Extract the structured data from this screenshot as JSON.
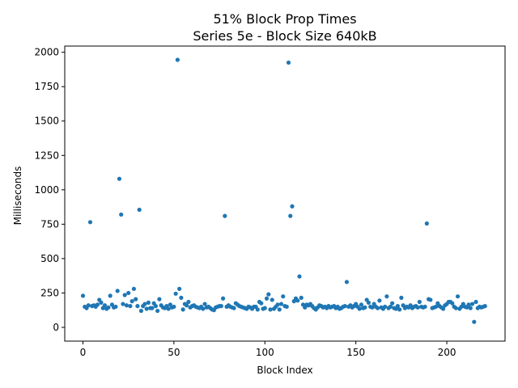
{
  "chart_data": {
    "type": "scatter",
    "title_line1": "51% Block Prop Times",
    "title_line2": "Series 5e - Block Size 640kB",
    "xlabel": "Block Index",
    "ylabel": "Milliseconds",
    "xlim": [
      -10,
      232
    ],
    "ylim": [
      -100,
      2045
    ],
    "xticks": [
      0,
      50,
      100,
      150,
      200
    ],
    "yticks": [
      0,
      250,
      500,
      750,
      1000,
      1250,
      1500,
      1750,
      2000
    ],
    "grid": false,
    "color": "#1f77b4",
    "series": [
      {
        "points": [
          [
            0,
            230
          ],
          [
            1,
            150
          ],
          [
            2,
            140
          ],
          [
            3,
            160
          ],
          [
            4,
            765
          ],
          [
            5,
            155
          ],
          [
            6,
            160
          ],
          [
            7,
            150
          ],
          [
            8,
            165
          ],
          [
            9,
            200
          ],
          [
            10,
            180
          ],
          [
            11,
            140
          ],
          [
            12,
            160
          ],
          [
            13,
            135
          ],
          [
            14,
            145
          ],
          [
            15,
            230
          ],
          [
            16,
            165
          ],
          [
            17,
            145
          ],
          [
            18,
            150
          ],
          [
            19,
            265
          ],
          [
            20,
            1080
          ],
          [
            21,
            820
          ],
          [
            22,
            170
          ],
          [
            23,
            235
          ],
          [
            24,
            160
          ],
          [
            25,
            250
          ],
          [
            26,
            155
          ],
          [
            27,
            190
          ],
          [
            28,
            280
          ],
          [
            29,
            205
          ],
          [
            30,
            155
          ],
          [
            31,
            855
          ],
          [
            32,
            120
          ],
          [
            33,
            155
          ],
          [
            34,
            170
          ],
          [
            35,
            135
          ],
          [
            36,
            180
          ],
          [
            37,
            140
          ],
          [
            38,
            140
          ],
          [
            39,
            175
          ],
          [
            40,
            155
          ],
          [
            41,
            120
          ],
          [
            42,
            205
          ],
          [
            43,
            160
          ],
          [
            44,
            145
          ],
          [
            45,
            140
          ],
          [
            46,
            155
          ],
          [
            47,
            135
          ],
          [
            48,
            165
          ],
          [
            49,
            145
          ],
          [
            50,
            150
          ],
          [
            51,
            245
          ],
          [
            52,
            1945
          ],
          [
            53,
            280
          ],
          [
            54,
            215
          ],
          [
            55,
            130
          ],
          [
            56,
            170
          ],
          [
            57,
            160
          ],
          [
            58,
            185
          ],
          [
            59,
            145
          ],
          [
            60,
            155
          ],
          [
            61,
            160
          ],
          [
            62,
            150
          ],
          [
            63,
            145
          ],
          [
            64,
            140
          ],
          [
            65,
            150
          ],
          [
            66,
            135
          ],
          [
            67,
            170
          ],
          [
            68,
            145
          ],
          [
            69,
            150
          ],
          [
            70,
            140
          ],
          [
            71,
            130
          ],
          [
            72,
            125
          ],
          [
            73,
            145
          ],
          [
            74,
            150
          ],
          [
            75,
            155
          ],
          [
            76,
            155
          ],
          [
            77,
            210
          ],
          [
            78,
            810
          ],
          [
            79,
            150
          ],
          [
            80,
            160
          ],
          [
            81,
            150
          ],
          [
            82,
            145
          ],
          [
            83,
            140
          ],
          [
            84,
            175
          ],
          [
            85,
            165
          ],
          [
            86,
            155
          ],
          [
            87,
            150
          ],
          [
            88,
            145
          ],
          [
            89,
            140
          ],
          [
            90,
            135
          ],
          [
            91,
            150
          ],
          [
            92,
            145
          ],
          [
            93,
            135
          ],
          [
            94,
            150
          ],
          [
            95,
            150
          ],
          [
            96,
            130
          ],
          [
            97,
            185
          ],
          [
            98,
            175
          ],
          [
            99,
            135
          ],
          [
            100,
            140
          ],
          [
            101,
            210
          ],
          [
            102,
            240
          ],
          [
            103,
            130
          ],
          [
            104,
            200
          ],
          [
            105,
            135
          ],
          [
            106,
            150
          ],
          [
            107,
            165
          ],
          [
            108,
            130
          ],
          [
            109,
            170
          ],
          [
            110,
            225
          ],
          [
            111,
            155
          ],
          [
            112,
            150
          ],
          [
            113,
            1925
          ],
          [
            114,
            810
          ],
          [
            115,
            880
          ],
          [
            116,
            190
          ],
          [
            117,
            210
          ],
          [
            118,
            195
          ],
          [
            119,
            370
          ],
          [
            120,
            215
          ],
          [
            121,
            165
          ],
          [
            122,
            145
          ],
          [
            123,
            165
          ],
          [
            124,
            160
          ],
          [
            125,
            170
          ],
          [
            126,
            155
          ],
          [
            127,
            140
          ],
          [
            128,
            130
          ],
          [
            129,
            145
          ],
          [
            130,
            160
          ],
          [
            131,
            155
          ],
          [
            132,
            145
          ],
          [
            133,
            150
          ],
          [
            134,
            140
          ],
          [
            135,
            155
          ],
          [
            136,
            145
          ],
          [
            137,
            150
          ],
          [
            138,
            155
          ],
          [
            139,
            140
          ],
          [
            140,
            150
          ],
          [
            141,
            135
          ],
          [
            142,
            140
          ],
          [
            143,
            150
          ],
          [
            144,
            155
          ],
          [
            145,
            330
          ],
          [
            146,
            150
          ],
          [
            147,
            160
          ],
          [
            148,
            145
          ],
          [
            149,
            155
          ],
          [
            150,
            170
          ],
          [
            151,
            150
          ],
          [
            152,
            135
          ],
          [
            153,
            165
          ],
          [
            154,
            140
          ],
          [
            155,
            145
          ],
          [
            156,
            200
          ],
          [
            157,
            180
          ],
          [
            158,
            150
          ],
          [
            159,
            145
          ],
          [
            160,
            170
          ],
          [
            161,
            150
          ],
          [
            162,
            140
          ],
          [
            163,
            195
          ],
          [
            164,
            145
          ],
          [
            165,
            135
          ],
          [
            166,
            150
          ],
          [
            167,
            225
          ],
          [
            168,
            140
          ],
          [
            169,
            150
          ],
          [
            170,
            175
          ],
          [
            171,
            140
          ],
          [
            172,
            135
          ],
          [
            173,
            155
          ],
          [
            174,
            130
          ],
          [
            175,
            215
          ],
          [
            176,
            160
          ],
          [
            177,
            140
          ],
          [
            178,
            150
          ],
          [
            179,
            145
          ],
          [
            180,
            160
          ],
          [
            181,
            140
          ],
          [
            182,
            150
          ],
          [
            183,
            155
          ],
          [
            184,
            145
          ],
          [
            185,
            185
          ],
          [
            186,
            150
          ],
          [
            187,
            145
          ],
          [
            188,
            150
          ],
          [
            189,
            755
          ],
          [
            190,
            205
          ],
          [
            191,
            200
          ],
          [
            192,
            140
          ],
          [
            193,
            145
          ],
          [
            194,
            150
          ],
          [
            195,
            175
          ],
          [
            196,
            155
          ],
          [
            197,
            145
          ],
          [
            198,
            135
          ],
          [
            199,
            160
          ],
          [
            200,
            170
          ],
          [
            201,
            185
          ],
          [
            202,
            185
          ],
          [
            203,
            175
          ],
          [
            204,
            150
          ],
          [
            205,
            140
          ],
          [
            206,
            225
          ],
          [
            207,
            135
          ],
          [
            208,
            150
          ],
          [
            209,
            170
          ],
          [
            210,
            150
          ],
          [
            211,
            145
          ],
          [
            212,
            165
          ],
          [
            213,
            140
          ],
          [
            214,
            170
          ],
          [
            215,
            40
          ],
          [
            216,
            185
          ],
          [
            217,
            140
          ],
          [
            218,
            150
          ],
          [
            219,
            145
          ],
          [
            220,
            150
          ],
          [
            221,
            155
          ]
        ]
      }
    ]
  }
}
